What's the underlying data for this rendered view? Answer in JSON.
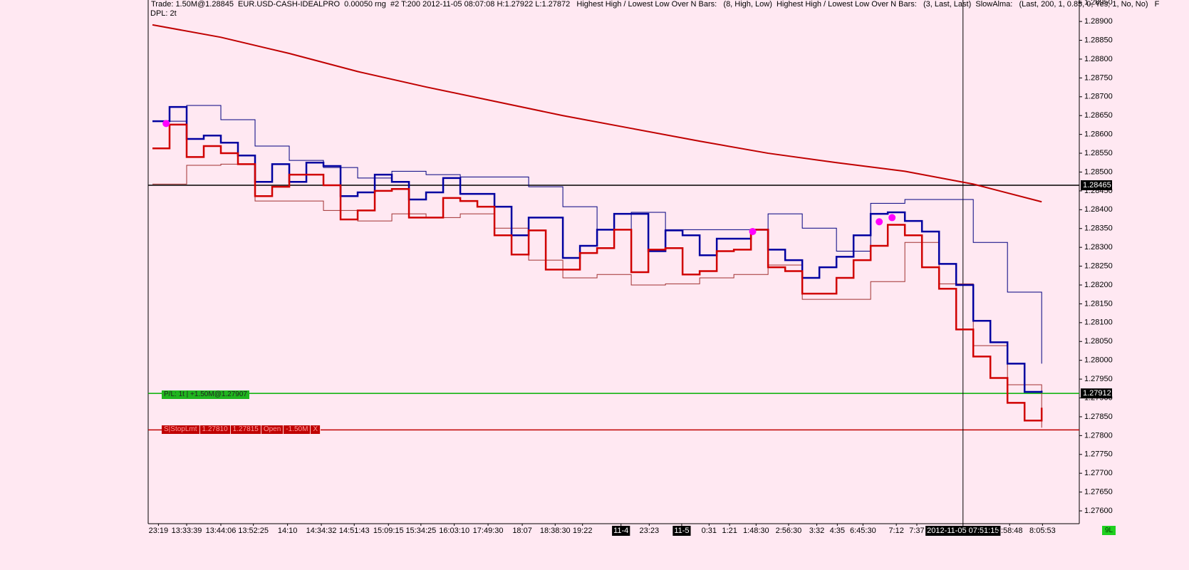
{
  "header": {
    "line1": "Trade: 1.50M@1.28845  EUR.USD-CASH-IDEALPRO  0.00050 rng  #2 T:200 2012-11-05 08:07:08 H:1.27922 L:1.27872   Highest High / Lowest Low Over N Bars:   (8, High, Low)  Highest High / Lowest Low Over N Bars:   (3, Last, Last)  SlowAlma:   (Last, 200, 1, 0.85, 0, Yes, 1, No, No)   F",
    "line2": "DPL: 2t"
  },
  "order_labels": {
    "pl": "P/L: 1t | +1.50M@1.27907",
    "stop": [
      "S|StopLmt",
      "1.27810",
      "1.27815",
      "Open",
      "-1.50M",
      "X"
    ]
  },
  "status_badge": "9L",
  "chart_data": {
    "type": "line",
    "xlim": [
      -0.5,
      108.4
    ],
    "ylim": [
      1.27566,
      1.28957
    ],
    "yticks": [
      {
        "value": 1.2895,
        "label": "1.28950"
      },
      {
        "value": 1.289,
        "label": "1.28900"
      },
      {
        "value": 1.2885,
        "label": "1.28850"
      },
      {
        "value": 1.288,
        "label": "1.28800"
      },
      {
        "value": 1.2875,
        "label": "1.28750"
      },
      {
        "value": 1.287,
        "label": "1.28700"
      },
      {
        "value": 1.2865,
        "label": "1.28650"
      },
      {
        "value": 1.286,
        "label": "1.28600"
      },
      {
        "value": 1.2855,
        "label": "1.28550"
      },
      {
        "value": 1.285,
        "label": "1.28500"
      },
      {
        "value": 1.2845,
        "label": "1.28450"
      },
      {
        "value": 1.284,
        "label": "1.28400"
      },
      {
        "value": 1.2835,
        "label": "1.28350"
      },
      {
        "value": 1.283,
        "label": "1.28300"
      },
      {
        "value": 1.2825,
        "label": "1.28250"
      },
      {
        "value": 1.282,
        "label": "1.28200"
      },
      {
        "value": 1.2815,
        "label": "1.28150"
      },
      {
        "value": 1.281,
        "label": "1.28100"
      },
      {
        "value": 1.2805,
        "label": "1.28050"
      },
      {
        "value": 1.28,
        "label": "1.28000"
      },
      {
        "value": 1.2795,
        "label": "1.27950"
      },
      {
        "value": 1.279,
        "label": "1.27900"
      },
      {
        "value": 1.2785,
        "label": "1.27850"
      },
      {
        "value": 1.278,
        "label": "1.27800"
      },
      {
        "value": 1.2775,
        "label": "1.27750"
      },
      {
        "value": 1.277,
        "label": "1.27700"
      },
      {
        "value": 1.2765,
        "label": "1.27650"
      },
      {
        "value": 1.276,
        "label": "1.27600"
      }
    ],
    "xticks": [
      {
        "value": 0.7,
        "label": "23:19"
      },
      {
        "value": 4,
        "label": "13:33:39"
      },
      {
        "value": 8,
        "label": "13:44:06"
      },
      {
        "value": 11.8,
        "label": "13:52:25"
      },
      {
        "value": 15.8,
        "label": "14:10"
      },
      {
        "value": 19.75,
        "label": "14:34:32"
      },
      {
        "value": 23.6,
        "label": "14:51:43"
      },
      {
        "value": 27.6,
        "label": "15:09:15"
      },
      {
        "value": 31.4,
        "label": "15:34:25"
      },
      {
        "value": 35.3,
        "label": "16:03:10"
      },
      {
        "value": 39.25,
        "label": "17:49:30"
      },
      {
        "value": 43.25,
        "label": "18:07"
      },
      {
        "value": 47.1,
        "label": "18:38:30"
      },
      {
        "value": 50.3,
        "label": "19:22"
      },
      {
        "value": 54.8,
        "label": "11-4",
        "highlight": true
      },
      {
        "value": 58.1,
        "label": "23:23"
      },
      {
        "value": 61.9,
        "label": "11-5",
        "highlight": true
      },
      {
        "value": 65.1,
        "label": "0:31"
      },
      {
        "value": 67.5,
        "label": "1:21"
      },
      {
        "value": 70.6,
        "label": "1:48:30"
      },
      {
        "value": 74.4,
        "label": "2:56:30"
      },
      {
        "value": 77.7,
        "label": "3:32"
      },
      {
        "value": 80.1,
        "label": "4:35"
      },
      {
        "value": 83.1,
        "label": "6:45:30"
      },
      {
        "value": 87,
        "label": "7:12"
      },
      {
        "value": 89.4,
        "label": "7:37"
      },
      {
        "value": 94.8,
        "label": "2012-11-05 07:51:15",
        "highlight": true
      },
      {
        "value": 100.25,
        "label": "7:58:48"
      },
      {
        "value": 104.1,
        "label": "8:05:53"
      }
    ],
    "crosshair": {
      "x": 94.8,
      "y": 1.28465
    },
    "price_lines": [
      {
        "value": 1.28465,
        "color": "#000000",
        "boxed": true
      },
      {
        "value": 1.27912,
        "color": "#00b000",
        "boxed": true
      },
      {
        "value": 1.27815,
        "color": "#c00000",
        "boxed": false
      }
    ],
    "series": [
      {
        "name": "SlowAlma",
        "style": "line",
        "color": "#c00000",
        "width": 2,
        "x": [
          0,
          8,
          16,
          24,
          32,
          40,
          48,
          56,
          64,
          72,
          80,
          88,
          96,
          104
        ],
        "values": [
          1.28891,
          1.28858,
          1.28815,
          1.28767,
          1.28726,
          1.28688,
          1.2865,
          1.28616,
          1.28582,
          1.2855,
          1.28525,
          1.28502,
          1.28468,
          1.28421
        ]
      },
      {
        "name": "Highest High (8)",
        "style": "step",
        "color": "#000080",
        "width": 1,
        "x": [
          0,
          4,
          8,
          12,
          16,
          20,
          24,
          28,
          32,
          36,
          40,
          44,
          48,
          52,
          56,
          60,
          64,
          68,
          72,
          76,
          80,
          84,
          88,
          92,
          96,
          100,
          104
        ],
        "values": [
          1.28635,
          1.28677,
          1.28639,
          1.28569,
          1.28531,
          1.28512,
          1.28484,
          1.28502,
          1.28493,
          1.28487,
          1.28487,
          1.28461,
          1.28408,
          1.28347,
          1.28393,
          1.28347,
          1.28347,
          1.28347,
          1.28389,
          1.28351,
          1.2829,
          1.28417,
          1.28427,
          1.28427,
          1.28313,
          1.28181,
          1.27991
        ]
      },
      {
        "name": "Lowest Low (8)",
        "style": "step",
        "color": "#a03030",
        "width": 1,
        "x": [
          0,
          4,
          8,
          12,
          16,
          20,
          24,
          28,
          32,
          36,
          40,
          44,
          48,
          52,
          56,
          60,
          64,
          68,
          72,
          76,
          80,
          84,
          88,
          92,
          96,
          100,
          104
        ],
        "values": [
          1.28468,
          1.28518,
          1.28521,
          1.28423,
          1.28423,
          1.28398,
          1.2837,
          1.28389,
          1.28379,
          1.28389,
          1.28351,
          1.28266,
          1.28219,
          1.28228,
          1.282,
          1.28203,
          1.28219,
          1.28228,
          1.28253,
          1.28162,
          1.28162,
          1.28209,
          1.28313,
          1.28203,
          1.28039,
          1.27935,
          1.27821
        ]
      },
      {
        "name": "Highest High (3)",
        "style": "step",
        "color": "#0000a0",
        "width": 2.5,
        "x": [
          0,
          2,
          4,
          6,
          8,
          10,
          12,
          14,
          16,
          18,
          20,
          22,
          24,
          26,
          28,
          30,
          32,
          34,
          36,
          38,
          40,
          42,
          44,
          46,
          48,
          50,
          52,
          54,
          56,
          58,
          60,
          62,
          64,
          66,
          68,
          70,
          72,
          74,
          76,
          78,
          80,
          82,
          84,
          86,
          88,
          90,
          92,
          94,
          96,
          98,
          100,
          102,
          104
        ],
        "values": [
          1.28635,
          1.28673,
          1.28588,
          1.28597,
          1.28578,
          1.28544,
          1.28474,
          1.28521,
          1.28474,
          1.28525,
          1.28516,
          1.28436,
          1.28446,
          1.28493,
          1.28474,
          1.28427,
          1.28446,
          1.28484,
          1.28442,
          1.28442,
          1.28408,
          1.28332,
          1.28379,
          1.28379,
          1.28272,
          1.28304,
          1.28347,
          1.28389,
          1.28389,
          1.2829,
          1.28345,
          1.28332,
          1.28279,
          1.28323,
          1.28323,
          1.28347,
          1.28294,
          1.28266,
          1.28219,
          1.28247,
          1.28275,
          1.28332,
          1.28389,
          1.28393,
          1.2837,
          1.28342,
          1.28256,
          1.282,
          1.28105,
          1.28048,
          1.27991,
          1.27916,
          1.27919
        ]
      },
      {
        "name": "Lowest Low (3)",
        "style": "step",
        "color": "#d00000",
        "width": 2.5,
        "x": [
          0,
          2,
          4,
          6,
          8,
          10,
          12,
          14,
          16,
          18,
          20,
          22,
          24,
          26,
          28,
          30,
          32,
          34,
          36,
          38,
          40,
          42,
          44,
          46,
          48,
          50,
          52,
          54,
          56,
          58,
          60,
          62,
          64,
          66,
          68,
          70,
          72,
          74,
          76,
          78,
          80,
          82,
          84,
          86,
          88,
          90,
          92,
          94,
          96,
          98,
          100,
          102,
          104
        ],
        "values": [
          1.28563,
          1.28626,
          1.2854,
          1.28569,
          1.2855,
          1.28521,
          1.28436,
          1.28461,
          1.28493,
          1.28493,
          1.28465,
          1.28374,
          1.28398,
          1.2845,
          1.28455,
          1.28379,
          1.28379,
          1.28431,
          1.28423,
          1.28408,
          1.28332,
          1.28281,
          1.28345,
          1.28241,
          1.28241,
          1.28285,
          1.28298,
          1.28347,
          1.28234,
          1.28294,
          1.28298,
          1.28228,
          1.28237,
          1.2829,
          1.28294,
          1.28347,
          1.28247,
          1.28237,
          1.28177,
          1.28177,
          1.28219,
          1.28266,
          1.28304,
          1.2836,
          1.28332,
          1.28247,
          1.2819,
          1.28082,
          1.2801,
          1.27953,
          1.27887,
          1.2784,
          1.27874
        ]
      },
      {
        "name": "Signals",
        "style": "dots",
        "color": "#ff00ff",
        "width": 5,
        "x": [
          1.6,
          70.2,
          85,
          86.5
        ],
        "values": [
          1.28629,
          1.28342,
          1.28368,
          1.28379
        ]
      }
    ]
  }
}
